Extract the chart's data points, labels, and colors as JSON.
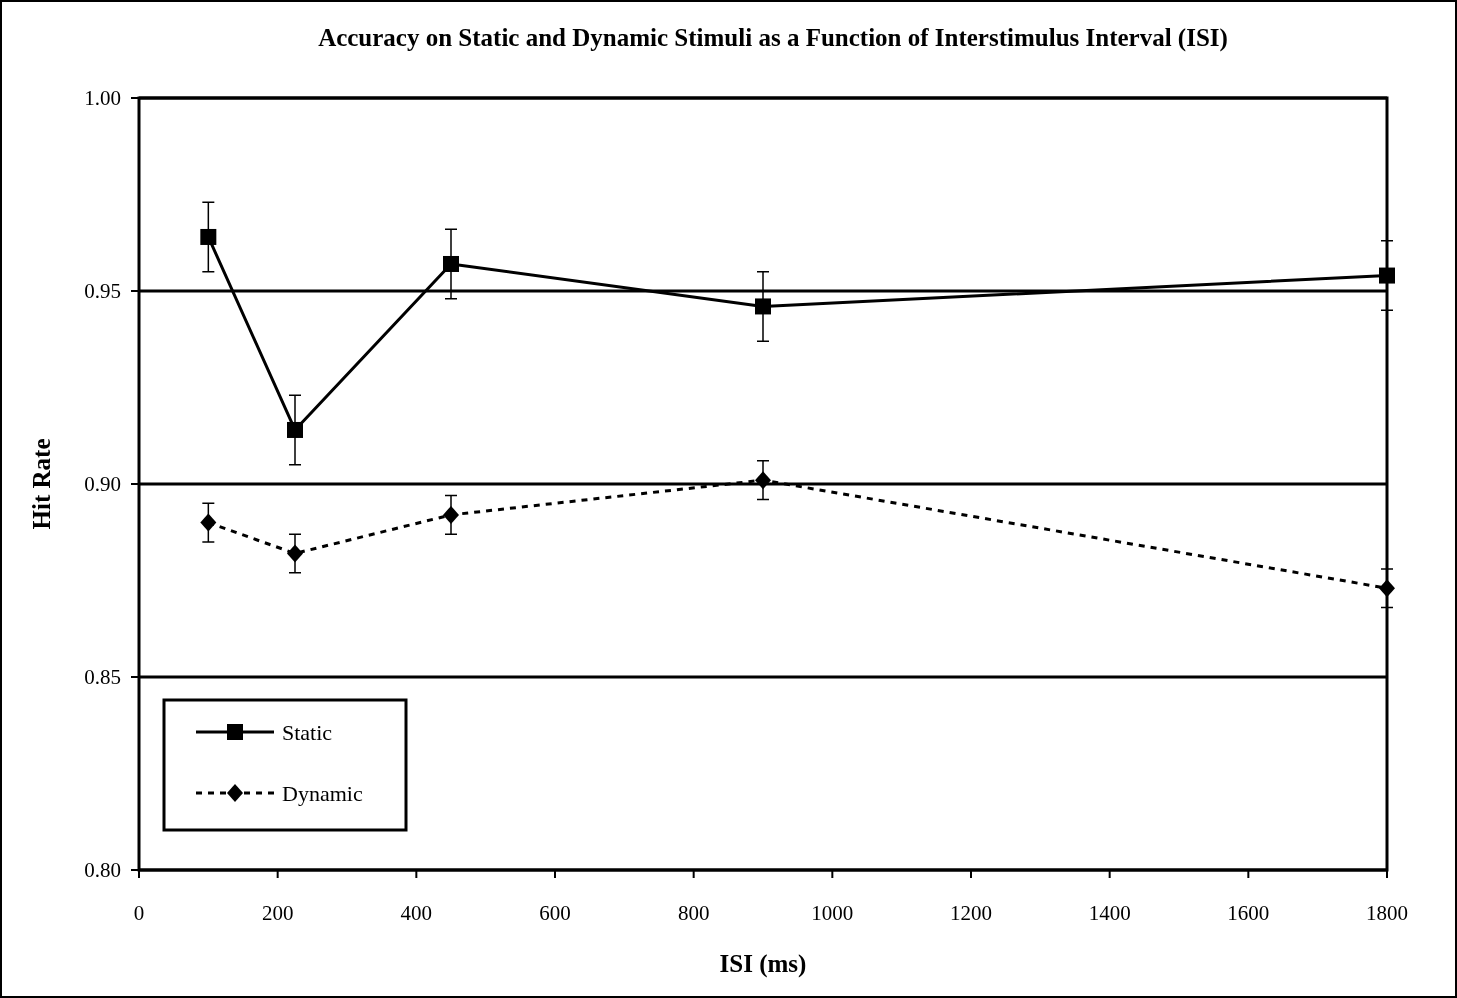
{
  "chart_data": {
    "type": "line",
    "title": "Accuracy on Static and Dynamic Stimuli as a Function of Interstimulus Interval (ISI)",
    "xlabel": "ISI (ms)",
    "ylabel": "Hit Rate",
    "x": [
      100,
      225,
      450,
      900,
      1800
    ],
    "series": [
      {
        "name": "Static",
        "color": "#000000",
        "marker": "square",
        "line_style": "solid",
        "values": [
          0.964,
          0.914,
          0.957,
          0.946,
          0.954
        ],
        "errors": [
          0.009,
          0.009,
          0.009,
          0.009,
          0.009
        ]
      },
      {
        "name": "Dynamic",
        "color": "#000000",
        "marker": "diamond",
        "line_style": "dotted",
        "values": [
          0.89,
          0.882,
          0.892,
          0.901,
          0.873
        ],
        "errors": [
          0.005,
          0.005,
          0.005,
          0.005,
          0.005
        ]
      }
    ],
    "xlim": [
      0,
      1800
    ],
    "xticks": [
      0,
      200,
      400,
      600,
      800,
      1000,
      1200,
      1400,
      1600,
      1800
    ],
    "ylim": [
      0.8,
      1.0
    ],
    "yticks": [
      {
        "value": 0.8,
        "label": "0.80"
      },
      {
        "value": 0.85,
        "label": "0.85"
      },
      {
        "value": 0.9,
        "label": "0.90"
      },
      {
        "value": 0.95,
        "label": "0.95"
      },
      {
        "value": 1.0,
        "label": "1.00"
      }
    ],
    "grid": "y",
    "legend": "bottom left"
  }
}
